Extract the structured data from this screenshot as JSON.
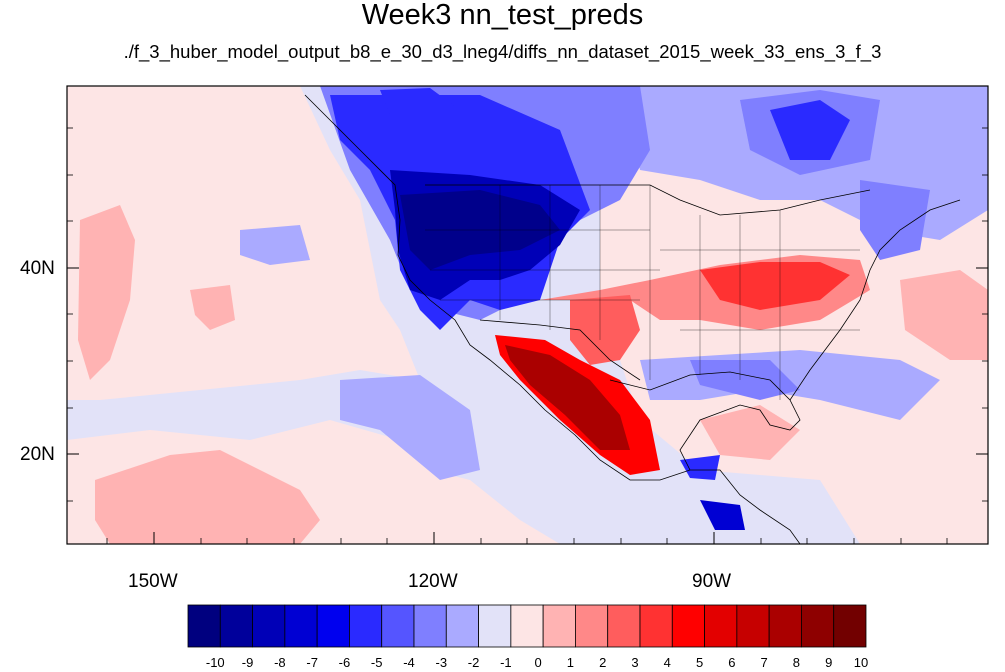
{
  "title": "Week3 nn_test_preds",
  "subtitle": "./f_3_huber_model_output_b8_e_30_d3_lneg4/diffs_nn_dataset_2015_week_33_ens_3_f_3",
  "axes": {
    "lon_labels": [
      "150W",
      "120W",
      "90W"
    ],
    "lat_labels": [
      "40N",
      "20N"
    ]
  },
  "colorbar": {
    "labels": [
      "-10",
      "-9",
      "-8",
      "-7",
      "-6",
      "-5",
      "-4",
      "-3",
      "-2",
      "-1",
      "0",
      "1",
      "2",
      "3",
      "4",
      "5",
      "6",
      "7",
      "8",
      "9",
      "10"
    ],
    "colors": [
      "#00007f",
      "#00009b",
      "#0000b7",
      "#0000d3",
      "#0000ef",
      "#2a2aff",
      "#5555ff",
      "#7f7fff",
      "#aaaaff",
      "#e2e2f8",
      "#fde5e5",
      "#ffb3b3",
      "#ff8888",
      "#ff5d5d",
      "#ff3232",
      "#ff0000",
      "#e30000",
      "#c60000",
      "#aa0000",
      "#8e0000",
      "#720000"
    ]
  }
}
